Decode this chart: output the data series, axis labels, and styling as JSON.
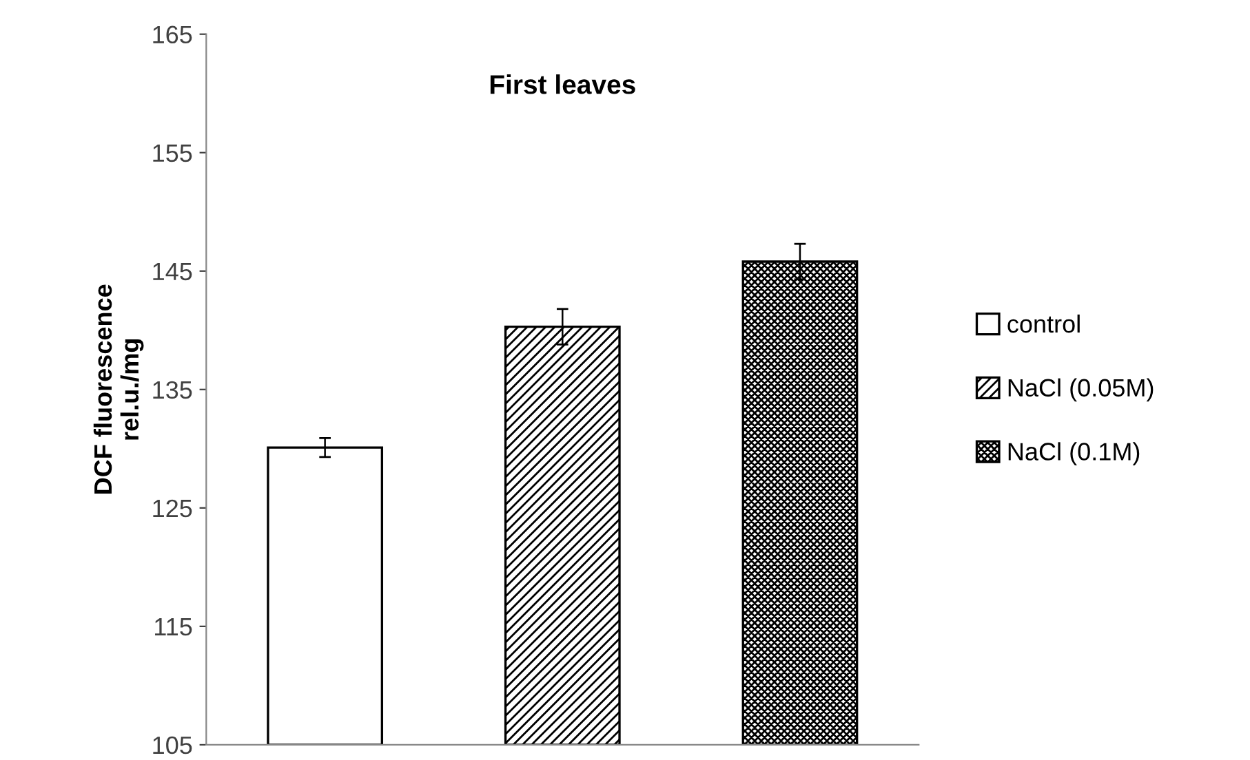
{
  "chart_data": {
    "type": "bar",
    "title": "First leaves",
    "ylabel": "DCF fluorescence\nrel.u./mg",
    "categories": [
      null,
      null,
      null
    ],
    "series": [
      {
        "name": "control",
        "color": "#ffffff",
        "values": [
          130.1,
          null,
          null
        ],
        "errors": [
          0.8,
          null,
          null
        ]
      },
      {
        "name": "NaCl (0.05M)",
        "color": "#000000",
        "values": [
          null,
          140.3,
          null
        ],
        "errors": [
          null,
          1.5,
          null
        ]
      },
      {
        "name": "NaCl (0.1M)",
        "color": "#000000",
        "values": [
          null,
          null,
          145.8
        ],
        "errors": [
          null,
          null,
          1.5
        ]
      }
    ],
    "ylim": [
      105,
      165
    ],
    "yticks": [
      105,
      115,
      125,
      135,
      145,
      155,
      165
    ],
    "legend": "right",
    "grid": false
  }
}
